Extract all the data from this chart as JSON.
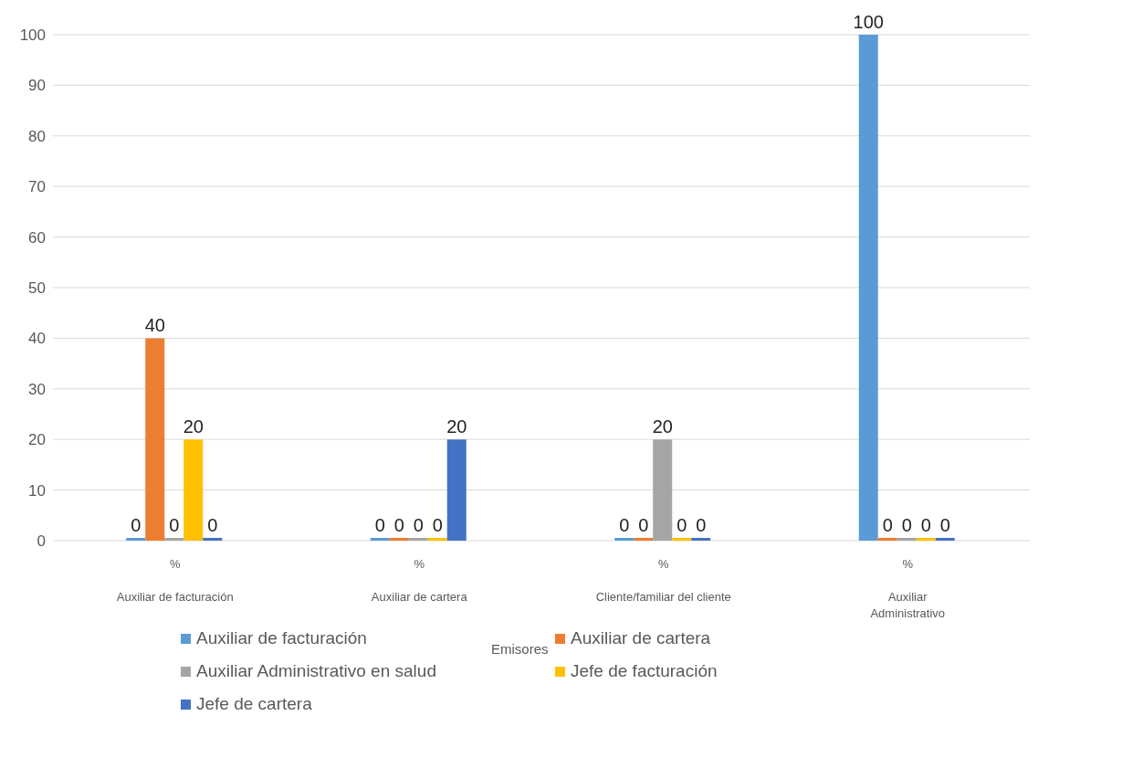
{
  "chart_data": {
    "type": "bar",
    "annotations": [
      "Emisores"
    ],
    "categories": [
      "%\nAuxiliar de facturación",
      "%\nAuxiliar de cartera",
      "%\nCliente/familiar del cliente",
      "%\nAuxiliar\nAdministrativo"
    ],
    "series": [
      {
        "name": "Auxiliar de facturación",
        "color": "#5b9bd5",
        "values": [
          0,
          0,
          0,
          100
        ]
      },
      {
        "name": "Auxiliar de cartera",
        "color": "#ed7d31",
        "values": [
          40,
          0,
          0,
          0
        ]
      },
      {
        "name": "Auxiliar Administrativo en salud",
        "color": "#a5a5a5",
        "values": [
          0,
          0,
          20,
          0
        ]
      },
      {
        "name": "Jefe de facturación",
        "color": "#ffc000",
        "values": [
          20,
          0,
          0,
          0
        ]
      },
      {
        "name": "Jefe de cartera",
        "color": "#4472c4",
        "values": [
          0,
          20,
          0,
          0
        ]
      }
    ],
    "ylim": [
      0,
      100
    ],
    "yticks": [
      0,
      10,
      20,
      30,
      40,
      50,
      60,
      70,
      80,
      90,
      100
    ],
    "grid": "y",
    "legend": "bottom",
    "data_labels": true
  }
}
